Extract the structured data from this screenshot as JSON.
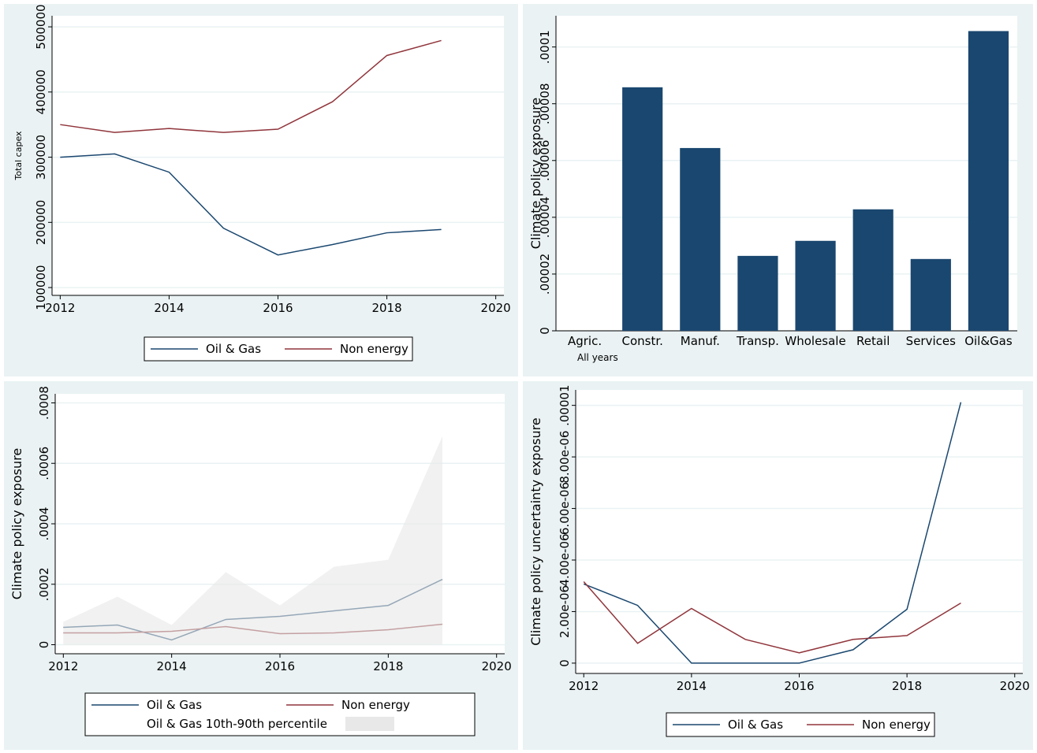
{
  "chart_data": [
    {
      "type": "line",
      "ylabel": "Total capex",
      "x": [
        2012,
        2013,
        2014,
        2015,
        2016,
        2017,
        2018,
        2019
      ],
      "series": [
        {
          "name": "Oil & Gas",
          "color": "#1a476f",
          "values": [
            300000,
            305000,
            277000,
            191000,
            150000,
            166000,
            184000,
            189000
          ]
        },
        {
          "name": "Non energy",
          "color": "#90353b",
          "values": [
            350000,
            338000,
            344000,
            338000,
            343000,
            385000,
            456000,
            479000
          ]
        }
      ],
      "xlim": [
        2011.85,
        2020.15
      ],
      "xticks": [
        2012,
        2014,
        2016,
        2018,
        2020
      ],
      "ylim": [
        88000,
        517000
      ],
      "yticks": [
        100000,
        200000,
        300000,
        400000,
        500000
      ],
      "grid": true,
      "legend": "bottom"
    },
    {
      "type": "bar",
      "ylabel": "Climate policy exposure",
      "note": "All years",
      "categories": [
        "Agric.",
        "Constr.",
        "Manuf.",
        "Transp.",
        "Wholesale",
        "Retail",
        "Services",
        "Oil&Gas"
      ],
      "values": [
        0,
        8.58e-05,
        6.44e-05,
        2.64e-05,
        3.17e-05,
        4.28e-05,
        2.53e-05,
        0.0001056
      ],
      "color": "#1a476f",
      "ylim": [
        0,
        0.000111
      ],
      "yticks": [
        0,
        {
          "value": 2e-05,
          "label": ".00002"
        },
        {
          "value": 4e-05,
          "label": ".00004"
        },
        {
          "value": 6e-05,
          "label": ".00006"
        },
        {
          "value": 8e-05,
          "label": ".00008"
        },
        {
          "value": 0.0001,
          "label": ".0001"
        }
      ],
      "grid": true
    },
    {
      "type": "line",
      "ylabel": "Climate policy exposure",
      "x": [
        2012,
        2013,
        2014,
        2015,
        2016,
        2017,
        2018,
        2019
      ],
      "series": [
        {
          "name": "Oil & Gas",
          "color": "#1a476f",
          "values": [
            5.73e-05,
            6.51e-05,
            1.56e-05,
            8.34e-05,
            9.38e-05,
            0.000112,
            0.00013,
            0.000216
          ]
        },
        {
          "name": "Non energy",
          "color": "#90353b",
          "values": [
            3.9e-05,
            3.9e-05,
            4.43e-05,
            6e-05,
            3.65e-05,
            3.9e-05,
            4.95e-05,
            6.78e-05
          ]
        }
      ],
      "band": {
        "name": "Oil & Gas 10th-90th percentile",
        "color": "#e8e8e8",
        "lower": [
          0,
          0,
          0,
          0,
          0,
          0,
          0,
          0
        ],
        "upper": [
          7.56e-05,
          0.000159,
          6.51e-05,
          0.00024,
          0.00013,
          0.000258,
          0.000281,
          0.00069
        ]
      },
      "xlim": [
        2011.85,
        2020.15
      ],
      "xticks": [
        2012,
        2014,
        2016,
        2018,
        2020
      ],
      "ylim": [
        -3e-05,
        0.00083
      ],
      "yticks": [
        0,
        {
          "value": 0.0002,
          "label": ".0002"
        },
        {
          "value": 0.0004,
          "label": ".0004"
        },
        {
          "value": 0.0006,
          "label": ".0006"
        },
        {
          "value": 0.0008,
          "label": ".0008"
        }
      ],
      "grid": true,
      "legend": "bottom"
    },
    {
      "type": "line",
      "ylabel": "Climate policy uncertainty exposure",
      "x": [
        2012,
        2013,
        2014,
        2015,
        2016,
        2017,
        2018,
        2019
      ],
      "series": [
        {
          "name": "Oil & Gas",
          "color": "#1a476f",
          "values": [
            3.07e-06,
            2.24e-06,
            0,
            0,
            0,
            5.2e-07,
            2.09e-06,
            1.012e-05
          ]
        },
        {
          "name": "Non energy",
          "color": "#90353b",
          "values": [
            3.16e-06,
            7.7e-07,
            2.12e-06,
            9.2e-07,
            4e-07,
            9.2e-07,
            1.07e-06,
            2.33e-06
          ]
        }
      ],
      "xlim": [
        2011.85,
        2020.15
      ],
      "xticks": [
        2012,
        2014,
        2016,
        2018,
        2020
      ],
      "ylim": [
        -4e-07,
        1.06e-05
      ],
      "yticks": [
        0,
        {
          "value": 2e-06,
          "label": "2.00e-06"
        },
        {
          "value": 4e-06,
          "label": "4.00e-06"
        },
        {
          "value": 6e-06,
          "label": "6.00e-06"
        },
        {
          "value": 8e-06,
          "label": "8.00e-06"
        },
        {
          "value": 1e-05,
          "label": ".00001"
        }
      ],
      "grid": true,
      "legend": "bottom"
    }
  ]
}
